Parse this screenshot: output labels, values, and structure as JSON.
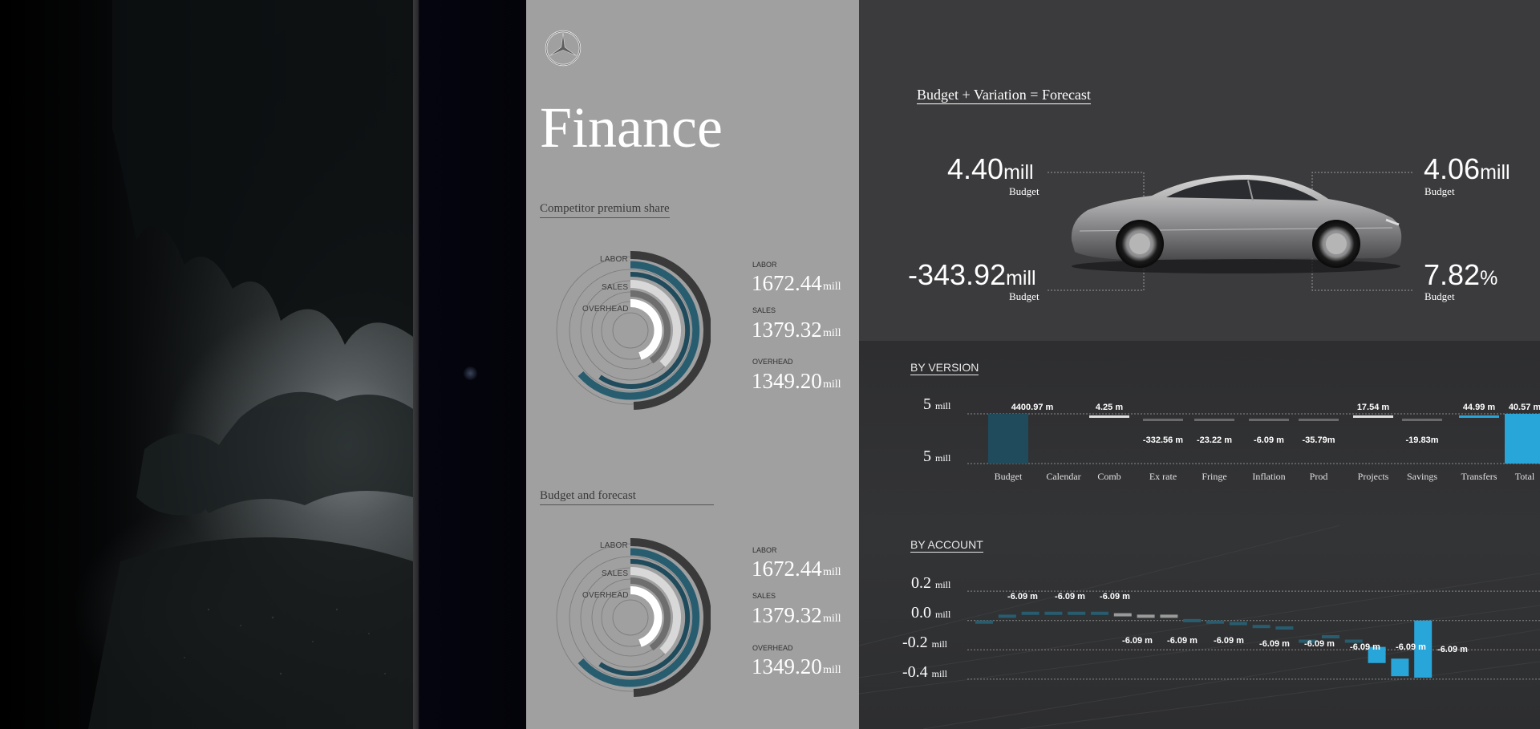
{
  "finance": {
    "title": "Finance",
    "sections": [
      {
        "title": "Competitor premium share",
        "radial_labels": [
          "LABOR",
          "SALES",
          "OVERHEAD"
        ],
        "items": [
          {
            "label": "LABOR",
            "value": "1672.44",
            "unit": "mill"
          },
          {
            "label": "SALES",
            "value": "1379.32",
            "unit": "mill"
          },
          {
            "label": "OVERHEAD",
            "value": "1349.20",
            "unit": "mill"
          }
        ]
      },
      {
        "title": "Budget and forecast",
        "radial_labels": [
          "LABOR",
          "SALES",
          "OVERHEAD"
        ],
        "items": [
          {
            "label": "LABOR",
            "value": "1672.44",
            "unit": "mill"
          },
          {
            "label": "SALES",
            "value": "1379.32",
            "unit": "mill"
          },
          {
            "label": "OVERHEAD",
            "value": "1349.20",
            "unit": "mill"
          }
        ]
      }
    ]
  },
  "summary": {
    "formula": "Budget + Variation = Forecast",
    "tl": {
      "value": "4.40",
      "unit": "mill",
      "label": "Budget"
    },
    "tr": {
      "value": "4.06",
      "unit": "mill",
      "label": "Budget"
    },
    "bl": {
      "value": "-343.92",
      "unit": "mill",
      "label": "Budget"
    },
    "br": {
      "value": "7.82",
      "unit": "%",
      "label": "Budget"
    }
  },
  "colors": {
    "teal_dark": "#1f4b5c",
    "teal": "#285d70",
    "accent_blue": "#29a6d9",
    "ring_dark": "#3a3a3a",
    "ring_light": "#d8d8d8"
  },
  "chart_data": [
    {
      "type": "bar",
      "title": "BY VERSION",
      "y_tick_labels": [
        {
          "value": "5",
          "unit": "mill"
        },
        {
          "value": "5",
          "unit": "mill"
        }
      ],
      "categories": [
        "Budget",
        "Calendar",
        "Comb",
        "Ex rate",
        "Fringe",
        "Inflation",
        "Prod",
        "Projects",
        "Savings",
        "Transfers",
        "Total"
      ],
      "data_labels": [
        "4400.97 m",
        "",
        "4.25 m",
        "-332.56 m",
        "-23.22 m",
        "-6.09 m",
        "-35.79m",
        "17.54 m",
        "-19.83m",
        "44.99 m",
        "40.57 m"
      ],
      "values": [
        4400.97,
        0,
        4.25,
        -332.56,
        -23.22,
        -6.09,
        -35.79,
        17.54,
        -19.83,
        44.99,
        40.57
      ]
    },
    {
      "type": "bar",
      "title": "BY ACCOUNT",
      "y_ticks": [
        {
          "value": "0.2",
          "unit": "mill"
        },
        {
          "value": "0.0",
          "unit": "mill"
        },
        {
          "value": "-0.2",
          "unit": "mill"
        },
        {
          "value": "-0.4",
          "unit": "mill"
        }
      ],
      "ylim": [
        -0.45,
        0.25
      ],
      "data_labels_above": [
        "-6.09 m",
        "-6.09 m",
        "-6.09 m"
      ],
      "data_labels_below": [
        "-6.09 m",
        "-6.09 m",
        "-6.09 m",
        "-6.09 m",
        "-6.09 m",
        "-6.09 m",
        "-6.09 m",
        "-6.09 m"
      ],
      "bars": [
        {
          "y0": 0.0,
          "y1": -0.02,
          "color": "#285d70"
        },
        {
          "y0": 0.04,
          "y1": 0.02,
          "color": "#285d70"
        },
        {
          "y0": 0.06,
          "y1": 0.04,
          "color": "#285d70"
        },
        {
          "y0": 0.06,
          "y1": 0.04,
          "color": "#285d70"
        },
        {
          "y0": 0.06,
          "y1": 0.04,
          "color": "#285d70"
        },
        {
          "y0": 0.06,
          "y1": 0.04,
          "color": "#285d70"
        },
        {
          "y0": 0.05,
          "y1": 0.03,
          "color": "#9a9a9a"
        },
        {
          "y0": 0.04,
          "y1": 0.02,
          "color": "#9a9a9a"
        },
        {
          "y0": 0.04,
          "y1": 0.02,
          "color": "#9a9a9a"
        },
        {
          "y0": 0.01,
          "y1": -0.01,
          "color": "#285d70"
        },
        {
          "y0": 0.0,
          "y1": -0.02,
          "color": "#285d70"
        },
        {
          "y0": -0.01,
          "y1": -0.03,
          "color": "#285d70"
        },
        {
          "y0": -0.03,
          "y1": -0.05,
          "color": "#285d70"
        },
        {
          "y0": -0.04,
          "y1": -0.06,
          "color": "#285d70"
        },
        {
          "y0": -0.13,
          "y1": -0.15,
          "color": "#285d70"
        },
        {
          "y0": -0.1,
          "y1": -0.12,
          "color": "#285d70"
        },
        {
          "y0": -0.13,
          "y1": -0.15,
          "color": "#285d70"
        },
        {
          "y0": -0.18,
          "y1": -0.29,
          "color": "#29a6d9"
        },
        {
          "y0": -0.26,
          "y1": -0.38,
          "color": "#29a6d9"
        },
        {
          "y0": 0.0,
          "y1": -0.39,
          "color": "#29a6d9"
        }
      ]
    }
  ]
}
